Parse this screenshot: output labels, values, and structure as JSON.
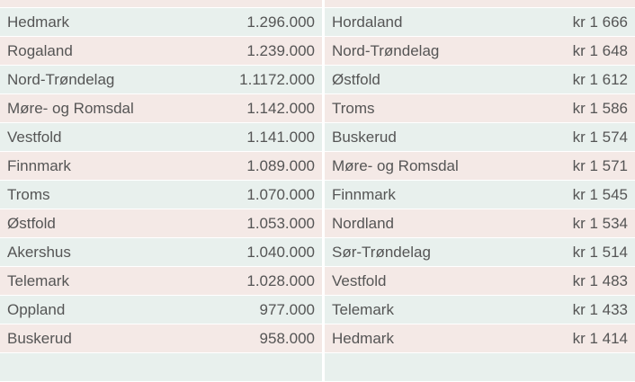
{
  "left_table": {
    "rows": [
      [
        "Hedmark",
        "1.296.000"
      ],
      [
        "Rogaland",
        "1.239.000"
      ],
      [
        "Nord-Trøndelag",
        "1.1172.000"
      ],
      [
        "Møre- og Romsdal",
        "1.142.000"
      ],
      [
        "Vestfold",
        "1.141.000"
      ],
      [
        "Finnmark",
        "1.089.000"
      ],
      [
        "Troms",
        "1.070.000"
      ],
      [
        "Østfold",
        "1.053.000"
      ],
      [
        "Akershus",
        "1.040.000"
      ],
      [
        "Telemark",
        "1.028.000"
      ],
      [
        "Oppland",
        "977.000"
      ],
      [
        "Buskerud",
        "958.000"
      ]
    ]
  },
  "right_table": {
    "rows": [
      [
        "Hordaland",
        "kr 1 666"
      ],
      [
        "Nord-Trøndelag",
        "kr 1 648"
      ],
      [
        "Østfold",
        "kr 1 612"
      ],
      [
        "Troms",
        "kr 1 586"
      ],
      [
        "Buskerud",
        "kr 1 574"
      ],
      [
        "Møre- og Romsdal",
        "kr 1 571"
      ],
      [
        "Finnmark",
        "kr 1 545"
      ],
      [
        "Nordland",
        "kr 1 534"
      ],
      [
        "Sør-Trøndelag",
        "kr 1 514"
      ],
      [
        "Vestfold",
        "kr 1 483"
      ],
      [
        "Telemark",
        "kr 1 433"
      ],
      [
        "Hedmark",
        "kr 1 414"
      ]
    ]
  }
}
